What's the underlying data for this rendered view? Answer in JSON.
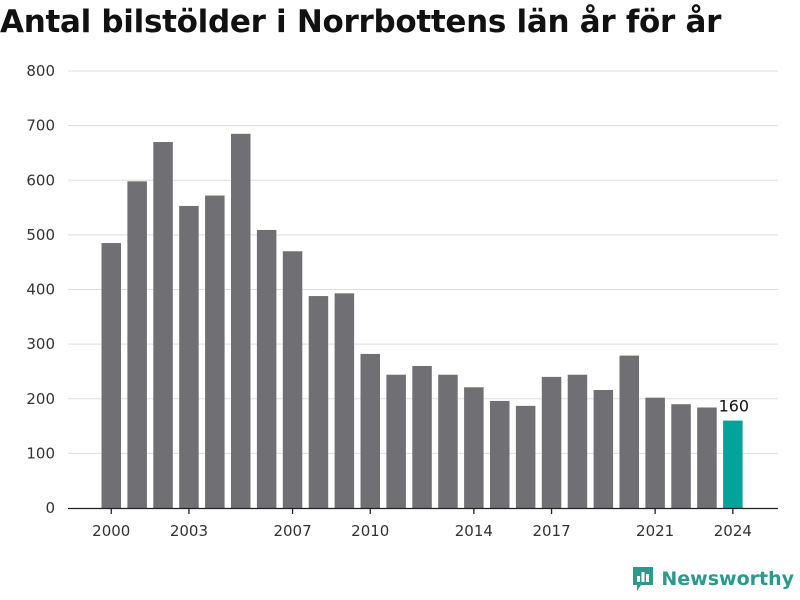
{
  "chart_data": {
    "type": "bar",
    "title": "Antal bilstölder i Norrbottens län år för år",
    "xlabel": "",
    "ylabel": "",
    "years": [
      2000,
      2001,
      2002,
      2003,
      2004,
      2005,
      2006,
      2007,
      2008,
      2009,
      2010,
      2011,
      2012,
      2013,
      2014,
      2015,
      2016,
      2017,
      2018,
      2019,
      2020,
      2021,
      2022,
      2023,
      2024
    ],
    "values": [
      485,
      598,
      670,
      553,
      572,
      685,
      509,
      470,
      388,
      393,
      282,
      244,
      260,
      244,
      221,
      196,
      187,
      240,
      244,
      216,
      279,
      202,
      190,
      184,
      160
    ],
    "x_ticks": [
      "2000",
      "2003",
      "2007",
      "2010",
      "2014",
      "2017",
      "2021",
      "2024"
    ],
    "y_ticks": [
      "0",
      "100",
      "200",
      "300",
      "400",
      "500",
      "600",
      "700",
      "800"
    ],
    "ylim": [
      0,
      800
    ],
    "bar_color": "#706f74",
    "highlight_color": "#00a49a",
    "highlight_label": "160",
    "grid": true
  },
  "brand": {
    "name": "Newsworthy",
    "color": "#2a9a8d",
    "icon": "bar-chart-logo-icon"
  }
}
